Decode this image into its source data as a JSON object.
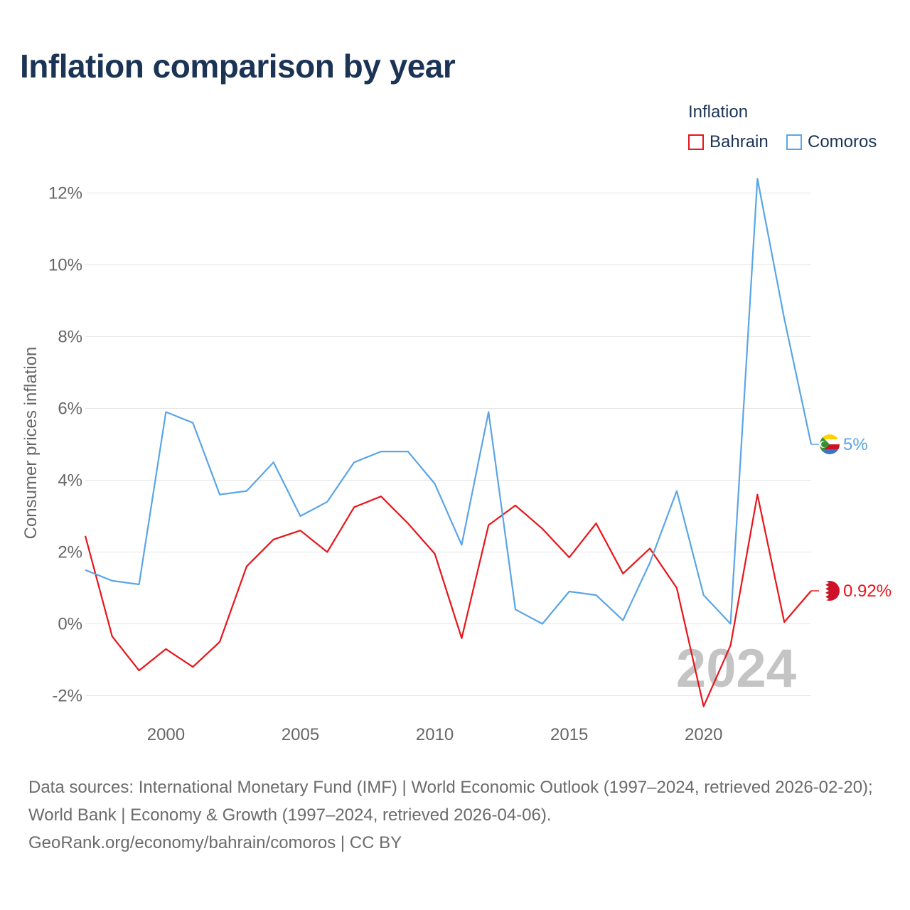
{
  "title": "Inflation comparison by year",
  "legend": {
    "title": "Inflation",
    "items": [
      {
        "label": "Bahrain",
        "color": "#e8141a"
      },
      {
        "label": "Comoros",
        "color": "#5aa5e6"
      }
    ]
  },
  "chart_data": {
    "type": "line",
    "title": "Inflation comparison by year",
    "xlabel": "",
    "ylabel": "Consumer prices inflation",
    "x": [
      1997,
      1998,
      1999,
      2000,
      2001,
      2002,
      2003,
      2004,
      2005,
      2006,
      2007,
      2008,
      2009,
      2010,
      2011,
      2012,
      2013,
      2014,
      2015,
      2016,
      2017,
      2018,
      2019,
      2020,
      2021,
      2022,
      2023,
      2024
    ],
    "xlim": [
      1997,
      2024
    ],
    "xticks": [
      2000,
      2005,
      2010,
      2015,
      2020
    ],
    "ylim": [
      -3,
      13
    ],
    "yticks": [
      -2,
      0,
      2,
      4,
      6,
      8,
      10,
      12
    ],
    "ytick_labels": [
      "-2%",
      "0%",
      "2%",
      "4%",
      "6%",
      "8%",
      "10%",
      "12%"
    ],
    "grid": true,
    "legend_position": "top-right",
    "year_watermark": "2024",
    "series": [
      {
        "name": "Bahrain",
        "color": "#e8141a",
        "flag": "bahrain-flag",
        "end_label": "0.92%",
        "values": [
          2.45,
          -0.35,
          -1.3,
          -0.7,
          -1.2,
          -0.5,
          1.6,
          2.35,
          2.6,
          2.0,
          3.25,
          3.55,
          2.8,
          1.95,
          -0.4,
          2.75,
          3.3,
          2.65,
          1.85,
          2.8,
          1.4,
          2.1,
          1.0,
          -2.3,
          -0.6,
          3.6,
          0.05,
          0.92
        ]
      },
      {
        "name": "Comoros",
        "color": "#5aa5e6",
        "flag": "comoros-flag",
        "end_label": "5%",
        "values": [
          1.5,
          1.2,
          1.1,
          5.9,
          5.6,
          3.6,
          3.7,
          4.5,
          3.0,
          3.4,
          4.5,
          4.8,
          4.8,
          3.9,
          2.2,
          5.9,
          0.4,
          0.0,
          0.9,
          0.8,
          0.1,
          1.7,
          3.7,
          0.8,
          0.0,
          12.4,
          8.5,
          5.0
        ]
      }
    ]
  },
  "footer": {
    "sources": "Data sources: International Monetary Fund (IMF) | World Economic Outlook (1997–2024, retrieved 2026-02-20); World Bank | Economy & Growth (1997–2024, retrieved 2026-04-06).",
    "credit": "GeoRank.org/economy/bahrain/comoros | CC BY"
  }
}
